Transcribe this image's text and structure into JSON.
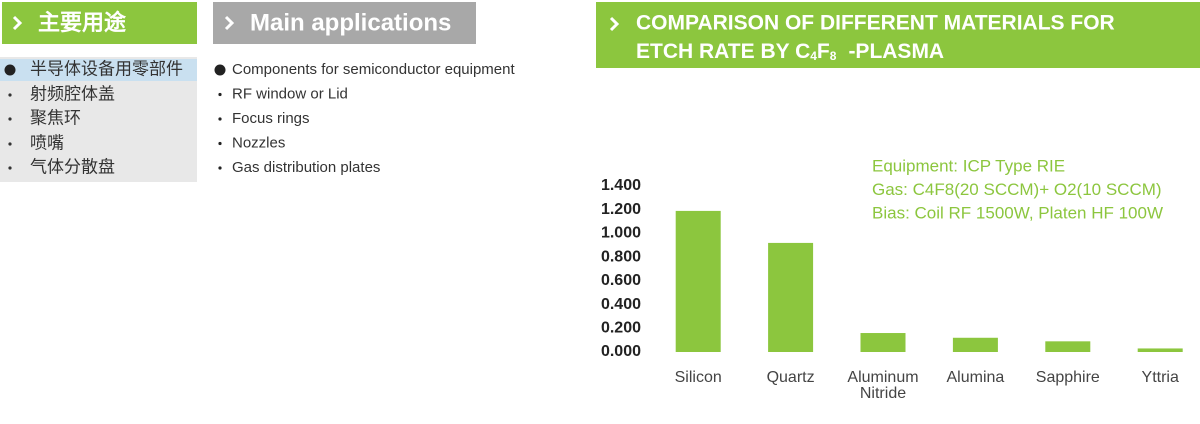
{
  "sidebar": {
    "title": "主要用途",
    "group": "半导体设备用零部件",
    "items": [
      "射频腔体盖",
      "聚焦环",
      "喷嘴",
      "气体分散盘"
    ]
  },
  "applications": {
    "title": "Main applications",
    "items": [
      "Components for semiconductor equipment",
      "RF window or Lid",
      "Focus rings",
      "Nozzles",
      "Gas distribution plates"
    ]
  },
  "chart_data": {
    "type": "bar",
    "title": [
      "COMPARISON OF DIFFERENT MATERIALS FOR",
      "ETCH RATE BY C",
      "4",
      "F",
      "8",
      "-PLASMA"
    ],
    "annotations": [
      "Equipment: ICP Type RIE",
      "Gas: C4F8(20 SCCM)+ O2(10 SCCM)",
      "Bias: Coil RF 1500W, Platen HF 100W"
    ],
    "categories": [
      "Silicon",
      "Quartz",
      "Aluminum Nitride",
      "Alumina",
      "Sapphire",
      "Yttria"
    ],
    "values": [
      1.19,
      0.92,
      0.16,
      0.12,
      0.09,
      0.03
    ],
    "color": "#8cc63e",
    "ylim": [
      0,
      1.4
    ],
    "yticks": [
      {
        "value": 0,
        "label": "0.000"
      },
      {
        "value": 0.2,
        "label": "0.200"
      },
      {
        "value": 0.4,
        "label": "0.400"
      },
      {
        "value": 0.6,
        "label": "0.600"
      },
      {
        "value": 0.8,
        "label": "0.800"
      },
      {
        "value": 1.0,
        "label": "1.000"
      },
      {
        "value": 1.2,
        "label": "1.200"
      },
      {
        "value": 1.4,
        "label": "1.400"
      }
    ],
    "grid": false
  }
}
